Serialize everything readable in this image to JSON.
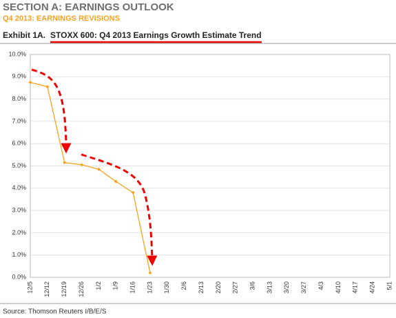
{
  "chart_data": {
    "type": "line",
    "section_title": "SECTION A: EARNINGS OUTLOOK",
    "subtitle": "Q4 2013: EARNINGS REVISIONS",
    "exhibit_label": "Exhibit 1A.",
    "title": "STOXX 600: Q4 2013 Earnings Growth Estimate Trend",
    "source": "Source: Thomson Reuters I/B/E/S",
    "categories": [
      "12/5",
      "12/12",
      "12/19",
      "12/26",
      "1/2",
      "1/9",
      "1/16",
      "1/23",
      "1/30",
      "2/6",
      "2/13",
      "2/20",
      "2/27",
      "3/6",
      "3/13",
      "3/20",
      "3/27",
      "4/3",
      "4/10",
      "4/17",
      "4/24",
      "5/1"
    ],
    "values": [
      8.75,
      8.55,
      5.15,
      5.05,
      4.85,
      4.3,
      3.8,
      0.2,
      null,
      null,
      null,
      null,
      null,
      null,
      null,
      null,
      null,
      null,
      null,
      null,
      null,
      null
    ],
    "color": "#f7a21b",
    "ylim": [
      0,
      10
    ],
    "yticks": [
      {
        "value": 0,
        "label": "0.0%"
      },
      {
        "value": 1,
        "label": "1.0%"
      },
      {
        "value": 2,
        "label": "2.0%"
      },
      {
        "value": 3,
        "label": "3.0%"
      },
      {
        "value": 4,
        "label": "4.0%"
      },
      {
        "value": 5,
        "label": "5.0%"
      },
      {
        "value": 6,
        "label": "6.0%"
      },
      {
        "value": 7,
        "label": "7.0%"
      },
      {
        "value": 8,
        "label": "8.0%"
      },
      {
        "value": 9,
        "label": "9.0%"
      },
      {
        "value": 10,
        "label": "10.0%"
      }
    ],
    "grid": true
  }
}
